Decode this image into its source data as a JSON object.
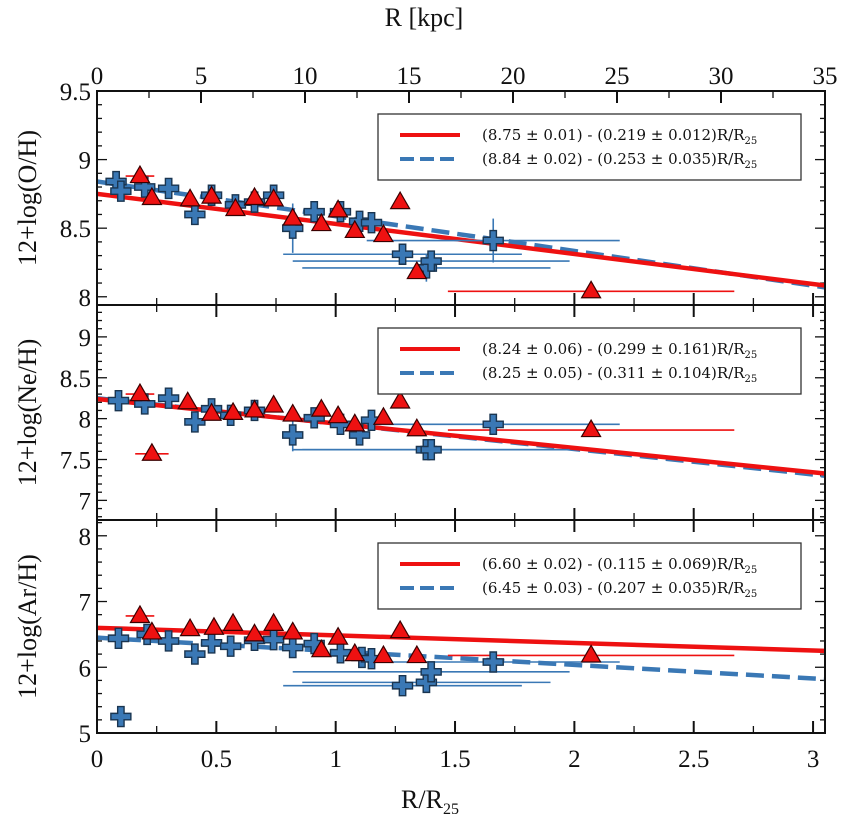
{
  "chart_data": {
    "type": "scatter",
    "top_axis": {
      "label": "R [kpc]",
      "range": [
        0,
        35
      ],
      "ticks": [
        "0",
        "5",
        "10",
        "15",
        "20",
        "25",
        "30",
        "35"
      ]
    },
    "x_axis": {
      "label_main": "R/R",
      "label_sub": "25",
      "range": [
        0,
        3.05
      ],
      "ticks": [
        "0",
        "0.5",
        "1",
        "1.5",
        "2",
        "2.5",
        "3"
      ]
    },
    "colors": {
      "red": "#ee1111",
      "blue": "#3a78b5",
      "blue_dark": "#1a3550"
    },
    "panels": [
      {
        "ylabel": "12+log(O/H)",
        "ylim": [
          7.94,
          9.5
        ],
        "yticks": [
          "8",
          "8.5",
          "9",
          "9.5"
        ],
        "ytick_values": [
          8,
          8.5,
          9,
          9.5
        ],
        "legend": [
          {
            "style": "solid-red",
            "text": "(8.75 ± 0.01) - (0.219 ± 0.012)R/R",
            "sub": "25"
          },
          {
            "style": "dashed-blue",
            "text": "(8.84 ± 0.02) - (0.253 ± 0.035)R/R",
            "sub": "25"
          }
        ],
        "fits": {
          "red": {
            "intercept": 8.75,
            "slope": -0.219
          },
          "blue": {
            "intercept": 8.84,
            "slope": -0.253
          }
        },
        "red_points": [
          {
            "x": 0.18,
            "y": 8.88,
            "xerr": 0.06,
            "yerr": 0.04
          },
          {
            "x": 0.23,
            "y": 8.72
          },
          {
            "x": 0.39,
            "y": 8.71
          },
          {
            "x": 0.48,
            "y": 8.73
          },
          {
            "x": 0.58,
            "y": 8.64
          },
          {
            "x": 0.66,
            "y": 8.72
          },
          {
            "x": 0.74,
            "y": 8.71
          },
          {
            "x": 0.82,
            "y": 8.57
          },
          {
            "x": 0.94,
            "y": 8.53
          },
          {
            "x": 1.01,
            "y": 8.63
          },
          {
            "x": 1.08,
            "y": 8.48
          },
          {
            "x": 1.2,
            "y": 8.45
          },
          {
            "x": 1.27,
            "y": 8.69
          },
          {
            "x": 1.34,
            "y": 8.18
          },
          {
            "x": 2.07,
            "y": 8.04,
            "xerr": 0.6,
            "yerr": 0.04
          }
        ],
        "blue_points": [
          {
            "x": 0.08,
            "y": 8.84
          },
          {
            "x": 0.1,
            "y": 8.77
          },
          {
            "x": 0.2,
            "y": 8.8
          },
          {
            "x": 0.3,
            "y": 8.79
          },
          {
            "x": 0.41,
            "y": 8.6
          },
          {
            "x": 0.48,
            "y": 8.74
          },
          {
            "x": 0.58,
            "y": 8.67
          },
          {
            "x": 0.66,
            "y": 8.69
          },
          {
            "x": 0.74,
            "y": 8.74
          },
          {
            "x": 0.82,
            "y": 8.5,
            "yerr": 0.18
          },
          {
            "x": 0.91,
            "y": 8.62
          },
          {
            "x": 1.02,
            "y": 8.62
          },
          {
            "x": 1.1,
            "y": 8.55
          },
          {
            "x": 1.15,
            "y": 8.54
          },
          {
            "x": 1.28,
            "y": 8.31,
            "xerr": 0.5
          },
          {
            "x": 1.38,
            "y": 8.21,
            "xerr": 0.52,
            "yerr": 0.1
          },
          {
            "x": 1.4,
            "y": 8.26,
            "xerr": 0.58
          },
          {
            "x": 1.66,
            "y": 8.41,
            "xerr": 0.53,
            "yerr": 0.16
          }
        ]
      },
      {
        "ylabel": "12+log(Ne/H)",
        "ylim": [
          6.76,
          9.39
        ],
        "yticks": [
          "7",
          "7.5",
          "8",
          "8.5",
          "9"
        ],
        "ytick_values": [
          7,
          7.5,
          8,
          8.5,
          9
        ],
        "legend": [
          {
            "style": "solid-red",
            "text": "(8.24 ± 0.06) - (0.299 ± 0.161)R/R",
            "sub": "25"
          },
          {
            "style": "dashed-blue",
            "text": "(8.25 ± 0.05) - (0.311 ± 0.104)R/R",
            "sub": "25"
          }
        ],
        "fits": {
          "red": {
            "intercept": 8.24,
            "slope": -0.299
          },
          "blue": {
            "intercept": 8.25,
            "slope": -0.311
          }
        },
        "red_points": [
          {
            "x": 0.18,
            "y": 8.3,
            "xerr": 0.06
          },
          {
            "x": 0.23,
            "y": 7.57,
            "xerr": 0.07
          },
          {
            "x": 0.38,
            "y": 8.2
          },
          {
            "x": 0.48,
            "y": 8.06
          },
          {
            "x": 0.57,
            "y": 8.07
          },
          {
            "x": 0.66,
            "y": 8.1
          },
          {
            "x": 0.74,
            "y": 8.16
          },
          {
            "x": 0.82,
            "y": 8.05
          },
          {
            "x": 0.94,
            "y": 8.11
          },
          {
            "x": 1.01,
            "y": 8.03
          },
          {
            "x": 1.08,
            "y": 7.93
          },
          {
            "x": 1.2,
            "y": 8.01
          },
          {
            "x": 1.27,
            "y": 8.21
          },
          {
            "x": 1.34,
            "y": 7.87
          },
          {
            "x": 2.07,
            "y": 7.86,
            "xerr": 0.6
          }
        ],
        "blue_points": [
          {
            "x": 0.09,
            "y": 8.22
          },
          {
            "x": 0.2,
            "y": 8.18
          },
          {
            "x": 0.3,
            "y": 8.25
          },
          {
            "x": 0.41,
            "y": 7.96
          },
          {
            "x": 0.48,
            "y": 8.12
          },
          {
            "x": 0.56,
            "y": 8.04
          },
          {
            "x": 0.66,
            "y": 8.1
          },
          {
            "x": 0.82,
            "y": 7.8,
            "yerr": 0.2
          },
          {
            "x": 0.91,
            "y": 8.01
          },
          {
            "x": 1.02,
            "y": 7.93
          },
          {
            "x": 1.1,
            "y": 7.8
          },
          {
            "x": 1.15,
            "y": 7.98
          },
          {
            "x": 1.38,
            "y": 7.62,
            "xerr": 0.52
          },
          {
            "x": 1.4,
            "y": 7.62,
            "xerr": 0.58
          },
          {
            "x": 1.66,
            "y": 7.93,
            "xerr": 0.53,
            "yerr": 0.12
          }
        ]
      },
      {
        "ylabel": "12+log(Ar/H)",
        "ylim": [
          5.0,
          8.24
        ],
        "yticks": [
          "5",
          "6",
          "7",
          "8"
        ],
        "ytick_values": [
          5,
          6,
          7,
          8
        ],
        "legend": [
          {
            "style": "solid-red",
            "text": "(6.60 ± 0.02) - (0.115 ± 0.069)R/R",
            "sub": "25"
          },
          {
            "style": "dashed-blue",
            "text": "(6.45 ± 0.03) - (0.207 ± 0.035)R/R",
            "sub": "25"
          }
        ],
        "fits": {
          "red": {
            "intercept": 6.6,
            "slope": -0.115
          },
          "blue": {
            "intercept": 6.45,
            "slope": -0.207
          }
        },
        "red_points": [
          {
            "x": 0.18,
            "y": 6.78,
            "xerr": 0.06
          },
          {
            "x": 0.23,
            "y": 6.53
          },
          {
            "x": 0.39,
            "y": 6.58
          },
          {
            "x": 0.49,
            "y": 6.6
          },
          {
            "x": 0.57,
            "y": 6.66
          },
          {
            "x": 0.66,
            "y": 6.5
          },
          {
            "x": 0.74,
            "y": 6.66
          },
          {
            "x": 0.82,
            "y": 6.53
          },
          {
            "x": 0.94,
            "y": 6.26
          },
          {
            "x": 1.01,
            "y": 6.45
          },
          {
            "x": 1.08,
            "y": 6.2
          },
          {
            "x": 1.2,
            "y": 6.17
          },
          {
            "x": 1.27,
            "y": 6.55
          },
          {
            "x": 1.34,
            "y": 6.17
          },
          {
            "x": 2.07,
            "y": 6.18,
            "xerr": 0.6
          }
        ],
        "blue_points": [
          {
            "x": 0.09,
            "y": 6.44
          },
          {
            "x": 0.1,
            "y": 5.25
          },
          {
            "x": 0.21,
            "y": 6.5
          },
          {
            "x": 0.3,
            "y": 6.4
          },
          {
            "x": 0.41,
            "y": 6.2
          },
          {
            "x": 0.48,
            "y": 6.37
          },
          {
            "x": 0.56,
            "y": 6.32
          },
          {
            "x": 0.66,
            "y": 6.41
          },
          {
            "x": 0.74,
            "y": 6.42
          },
          {
            "x": 0.82,
            "y": 6.3
          },
          {
            "x": 0.91,
            "y": 6.36
          },
          {
            "x": 1.02,
            "y": 6.22
          },
          {
            "x": 1.11,
            "y": 6.15
          },
          {
            "x": 1.15,
            "y": 6.13
          },
          {
            "x": 1.28,
            "y": 5.72,
            "xerr": 0.5
          },
          {
            "x": 1.38,
            "y": 5.77,
            "xerr": 0.52
          },
          {
            "x": 1.4,
            "y": 5.93,
            "xerr": 0.58
          },
          {
            "x": 1.66,
            "y": 6.08,
            "xerr": 0.53
          }
        ]
      }
    ]
  }
}
